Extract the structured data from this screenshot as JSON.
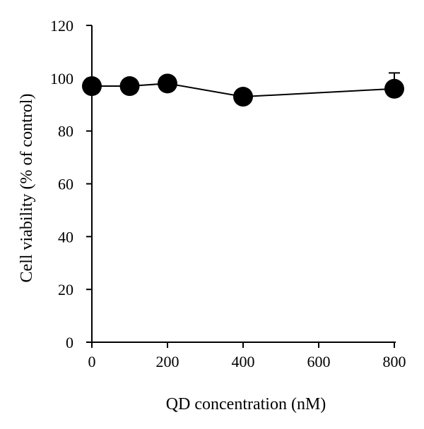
{
  "chart_data": {
    "type": "line",
    "title": "",
    "xlabel": "QD concentration (nM)",
    "ylabel": "Cell viability (% of control)",
    "xlim": [
      0,
      800
    ],
    "ylim": [
      0,
      120
    ],
    "x_ticks": [
      0,
      200,
      400,
      600,
      800
    ],
    "y_ticks": [
      0,
      20,
      40,
      60,
      80,
      100,
      120
    ],
    "grid": false,
    "legend": "none",
    "series": [
      {
        "x": [
          0,
          100,
          200,
          400,
          800
        ],
        "y": [
          97,
          97,
          98,
          93,
          96
        ],
        "error_upper": [
          0,
          0,
          0,
          0,
          6
        ],
        "color": "#000000",
        "marker": "filled-circle"
      }
    ]
  }
}
